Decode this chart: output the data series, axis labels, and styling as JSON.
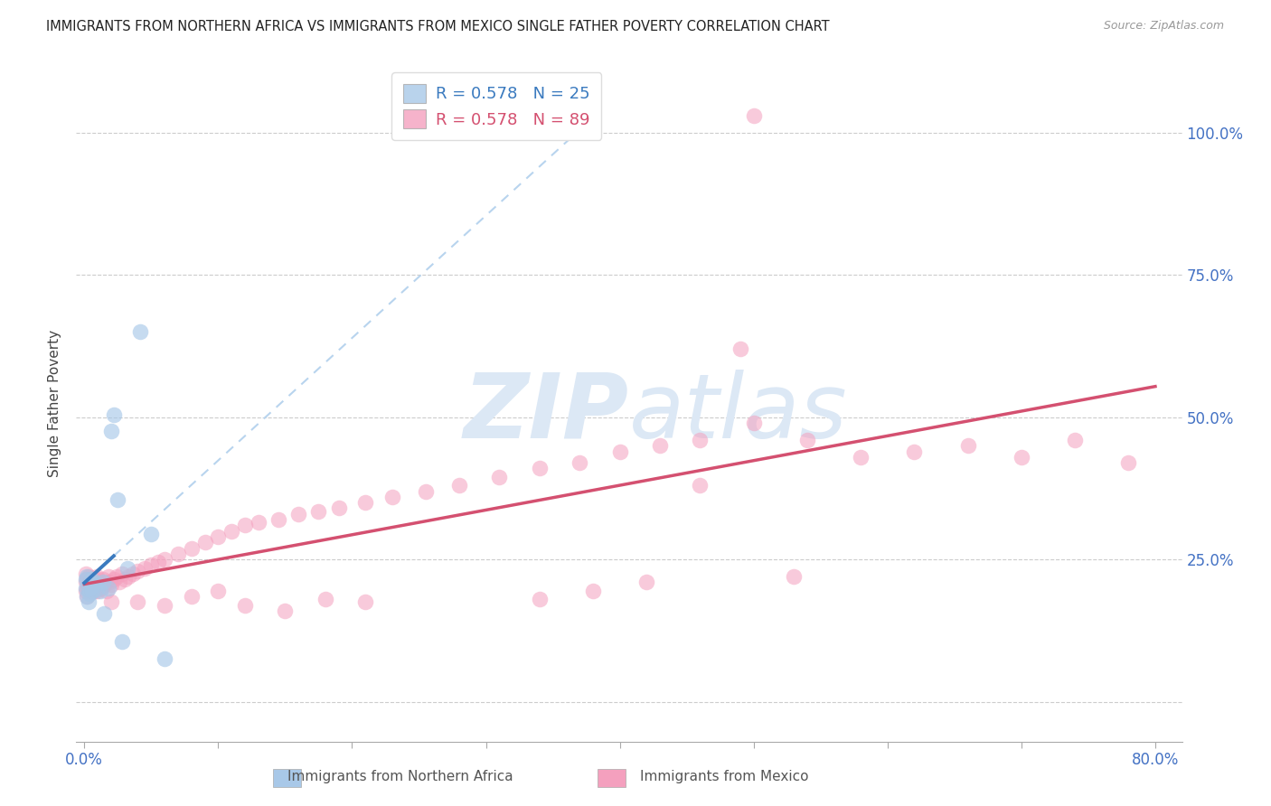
{
  "title": "IMMIGRANTS FROM NORTHERN AFRICA VS IMMIGRANTS FROM MEXICO SINGLE FATHER POVERTY CORRELATION CHART",
  "source": "Source: ZipAtlas.com",
  "ylabel": "Single Father Poverty",
  "color_blue": "#a8c8e8",
  "color_pink": "#f4a0be",
  "color_blue_line": "#3a7abf",
  "color_pink_line": "#d45070",
  "color_blue_dash": "#b8d4ee",
  "watermark_zip": "ZIP",
  "watermark_atlas": "atlas",
  "watermark_color": "#dce8f5",
  "legend_text1": "R = 0.578   N = 25",
  "legend_text2": "R = 0.578   N = 89",
  "legend_label1": "Immigrants from Northern Africa",
  "legend_label2": "Immigrants from Mexico",
  "xlim": [
    -0.006,
    0.82
  ],
  "ylim": [
    -0.07,
    1.12
  ],
  "xtick_pos": [
    0.0,
    0.1,
    0.2,
    0.3,
    0.4,
    0.5,
    0.6,
    0.7,
    0.8
  ],
  "xtick_lab": [
    "0.0%",
    "",
    "",
    "",
    "",
    "",
    "",
    "",
    "80.0%"
  ],
  "ytick_pos": [
    0.0,
    0.25,
    0.5,
    0.75,
    1.0
  ],
  "ytick_lab": [
    "",
    "25.0%",
    "50.0%",
    "75.0%",
    "100.0%"
  ],
  "blue_x": [
    0.001,
    0.001,
    0.002,
    0.002,
    0.003,
    0.003,
    0.004,
    0.005,
    0.005,
    0.006,
    0.007,
    0.008,
    0.01,
    0.012,
    0.014,
    0.015,
    0.018,
    0.02,
    0.022,
    0.025,
    0.028,
    0.032,
    0.042,
    0.05,
    0.06
  ],
  "blue_y": [
    0.215,
    0.2,
    0.22,
    0.185,
    0.2,
    0.175,
    0.19,
    0.215,
    0.205,
    0.195,
    0.21,
    0.205,
    0.2,
    0.195,
    0.21,
    0.155,
    0.2,
    0.475,
    0.505,
    0.355,
    0.105,
    0.235,
    0.65,
    0.295,
    0.075
  ],
  "pink_x": [
    0.001,
    0.001,
    0.001,
    0.002,
    0.002,
    0.002,
    0.003,
    0.003,
    0.004,
    0.004,
    0.005,
    0.005,
    0.006,
    0.006,
    0.007,
    0.007,
    0.008,
    0.008,
    0.009,
    0.009,
    0.01,
    0.01,
    0.011,
    0.012,
    0.013,
    0.014,
    0.015,
    0.016,
    0.017,
    0.018,
    0.019,
    0.02,
    0.022,
    0.024,
    0.026,
    0.028,
    0.03,
    0.033,
    0.036,
    0.04,
    0.045,
    0.05,
    0.055,
    0.06,
    0.07,
    0.08,
    0.09,
    0.1,
    0.11,
    0.12,
    0.13,
    0.145,
    0.16,
    0.175,
    0.19,
    0.21,
    0.23,
    0.255,
    0.28,
    0.31,
    0.34,
    0.37,
    0.4,
    0.43,
    0.46,
    0.49,
    0.34,
    0.38,
    0.42,
    0.46,
    0.5,
    0.54,
    0.58,
    0.62,
    0.66,
    0.7,
    0.74,
    0.78,
    0.5,
    0.53,
    0.02,
    0.04,
    0.06,
    0.08,
    0.1,
    0.12,
    0.15,
    0.18,
    0.21
  ],
  "pink_y": [
    0.21,
    0.195,
    0.225,
    0.2,
    0.215,
    0.185,
    0.22,
    0.2,
    0.21,
    0.195,
    0.215,
    0.2,
    0.205,
    0.195,
    0.215,
    0.2,
    0.21,
    0.195,
    0.22,
    0.205,
    0.215,
    0.195,
    0.21,
    0.205,
    0.2,
    0.215,
    0.205,
    0.21,
    0.195,
    0.22,
    0.21,
    0.205,
    0.215,
    0.22,
    0.21,
    0.225,
    0.215,
    0.22,
    0.225,
    0.23,
    0.235,
    0.24,
    0.245,
    0.25,
    0.26,
    0.27,
    0.28,
    0.29,
    0.3,
    0.31,
    0.315,
    0.32,
    0.33,
    0.335,
    0.34,
    0.35,
    0.36,
    0.37,
    0.38,
    0.395,
    0.41,
    0.42,
    0.44,
    0.45,
    0.46,
    0.62,
    0.18,
    0.195,
    0.21,
    0.38,
    0.49,
    0.46,
    0.43,
    0.44,
    0.45,
    0.43,
    0.46,
    0.42,
    1.03,
    0.22,
    0.175,
    0.175,
    0.17,
    0.185,
    0.195,
    0.17,
    0.16,
    0.18,
    0.175
  ]
}
